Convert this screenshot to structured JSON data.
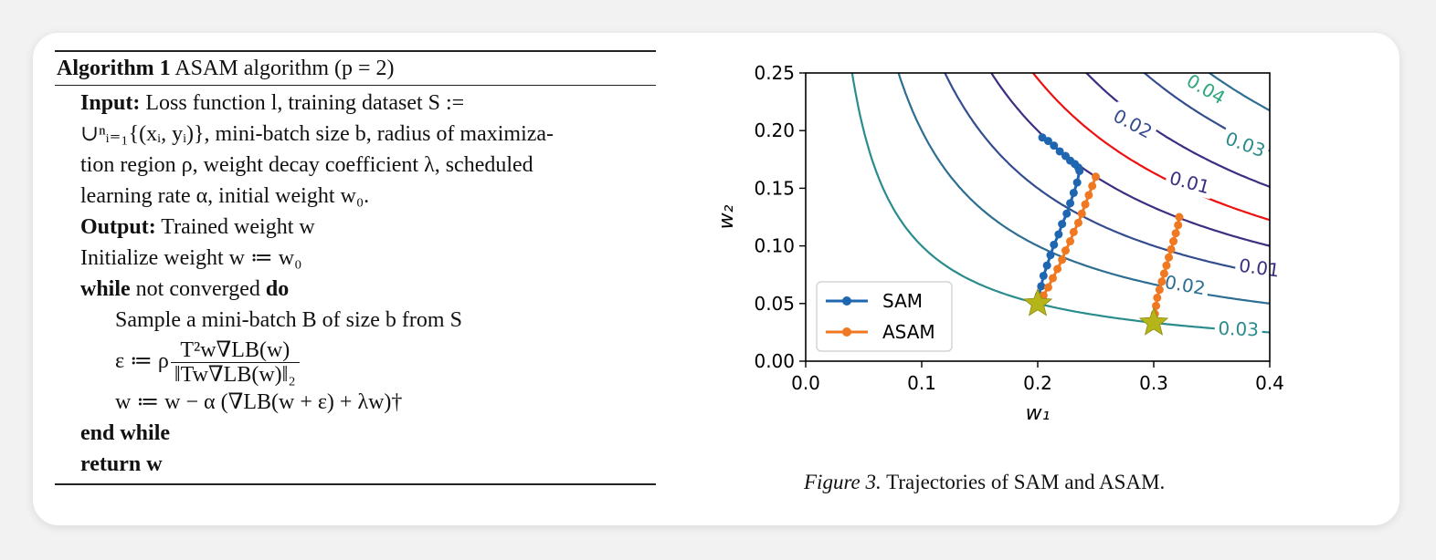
{
  "algorithm": {
    "number_label": "Algorithm 1",
    "title": "ASAM algorithm (p = 2)",
    "input_keyword": "Input:",
    "input_text_1": "Loss function l, training dataset S :=",
    "input_text_2": "∪ⁿᵢ₌₁{(xᵢ, yᵢ)}, mini-batch size b, radius of maximiza-",
    "input_text_3": "tion region ρ, weight decay coefficient λ, scheduled",
    "input_text_4": "learning rate α, initial weight w₀.",
    "output_keyword": "Output:",
    "output_text": "Trained weight w",
    "init_line": "Initialize weight w ≔ w₀",
    "while_keyword": "while",
    "while_cond": "not converged",
    "do_keyword": "do",
    "sample_line": "Sample a mini-batch B of size b from S",
    "eps_lhs": "ε ≔ ρ",
    "eps_num": "T²w∇LB(w)",
    "eps_den": "‖Tw∇LB(w)‖₂",
    "update_line": "w ≔ w − α (∇LB(w + ε) + λw)†",
    "end_keyword": "end while",
    "return_keyword": "return",
    "return_value": "w"
  },
  "figure": {
    "caption_label": "Figure 3.",
    "caption_text": "Trajectories of SAM and ASAM."
  },
  "chart_data": {
    "type": "line",
    "xlabel": "w₁",
    "ylabel": "w₂",
    "xlim": [
      0.0,
      0.4
    ],
    "ylim": [
      0.0,
      0.25
    ],
    "xticks": [
      "0.0",
      "0.1",
      "0.2",
      "0.3",
      "0.4"
    ],
    "yticks": [
      "0.00",
      "0.05",
      "0.10",
      "0.15",
      "0.20",
      "0.25"
    ],
    "legend_position": "lower-left",
    "contour_labels": [
      "0.04",
      "0.02",
      "0.03",
      "0.01",
      "0.01",
      "0.02",
      "0.03"
    ],
    "contours": [
      {
        "xy_product": 0.01,
        "color": "#2a8c8c"
      },
      {
        "xy_product": 0.02,
        "color": "#2d6e92"
      },
      {
        "xy_product": 0.03,
        "color": "#344d8e"
      },
      {
        "xy_product": 0.04,
        "color": "#3a2f80"
      },
      {
        "xy_product": 0.049,
        "color": "#ee1111"
      },
      {
        "xy_product": 0.0605,
        "color": "#3a2f80"
      },
      {
        "xy_product": 0.073,
        "color": "#344d8e"
      },
      {
        "xy_product": 0.087,
        "color": "#2d6e92"
      },
      {
        "xy_product": 0.104,
        "color": "#2a8c8c"
      },
      {
        "xy_product": 0.128,
        "color": "#2ea87c"
      },
      {
        "xy_product": 0.16,
        "color": "#7ed03a"
      }
    ],
    "series": [
      {
        "name": "SAM",
        "color": "#1f66b0",
        "points": [
          [
            0.204,
            0.194
          ],
          [
            0.209,
            0.191
          ],
          [
            0.214,
            0.187
          ],
          [
            0.219,
            0.182
          ],
          [
            0.224,
            0.178
          ],
          [
            0.228,
            0.174
          ],
          [
            0.232,
            0.171
          ],
          [
            0.235,
            0.168
          ],
          [
            0.236,
            0.165
          ],
          [
            0.234,
            0.155
          ],
          [
            0.231,
            0.146
          ],
          [
            0.228,
            0.137
          ],
          [
            0.225,
            0.128
          ],
          [
            0.221,
            0.119
          ],
          [
            0.218,
            0.11
          ],
          [
            0.214,
            0.101
          ],
          [
            0.211,
            0.092
          ],
          [
            0.208,
            0.083
          ],
          [
            0.205,
            0.074
          ],
          [
            0.203,
            0.065
          ],
          [
            0.201,
            0.057
          ],
          [
            0.2,
            0.05
          ]
        ]
      },
      {
        "name": "ASAM",
        "color": "#f07820",
        "points": [
          [
            0.25,
            0.16
          ],
          [
            0.247,
            0.152
          ],
          [
            0.244,
            0.144
          ],
          [
            0.241,
            0.136
          ],
          [
            0.238,
            0.128
          ],
          [
            0.235,
            0.12
          ],
          [
            0.231,
            0.112
          ],
          [
            0.228,
            0.104
          ],
          [
            0.224,
            0.096
          ],
          [
            0.221,
            0.088
          ],
          [
            0.217,
            0.08
          ],
          [
            0.213,
            0.072
          ],
          [
            0.209,
            0.064
          ],
          [
            0.205,
            0.057
          ],
          [
            0.201,
            0.05
          ]
        ]
      },
      {
        "name": "ASAM",
        "color": "#f07820",
        "points": [
          [
            0.322,
            0.125
          ],
          [
            0.321,
            0.118
          ],
          [
            0.319,
            0.111
          ],
          [
            0.317,
            0.104
          ],
          [
            0.315,
            0.097
          ],
          [
            0.313,
            0.09
          ],
          [
            0.311,
            0.083
          ],
          [
            0.309,
            0.076
          ],
          [
            0.307,
            0.069
          ],
          [
            0.305,
            0.062
          ],
          [
            0.303,
            0.055
          ],
          [
            0.302,
            0.048
          ],
          [
            0.301,
            0.041
          ],
          [
            0.3,
            0.034
          ]
        ]
      }
    ],
    "legend": [
      {
        "name": "SAM",
        "color": "#1f66b0"
      },
      {
        "name": "ASAM",
        "color": "#f07820"
      }
    ],
    "minima": [
      [
        0.2,
        0.05
      ],
      [
        0.3,
        0.0333
      ]
    ],
    "minima_color": "#b5b51a"
  }
}
